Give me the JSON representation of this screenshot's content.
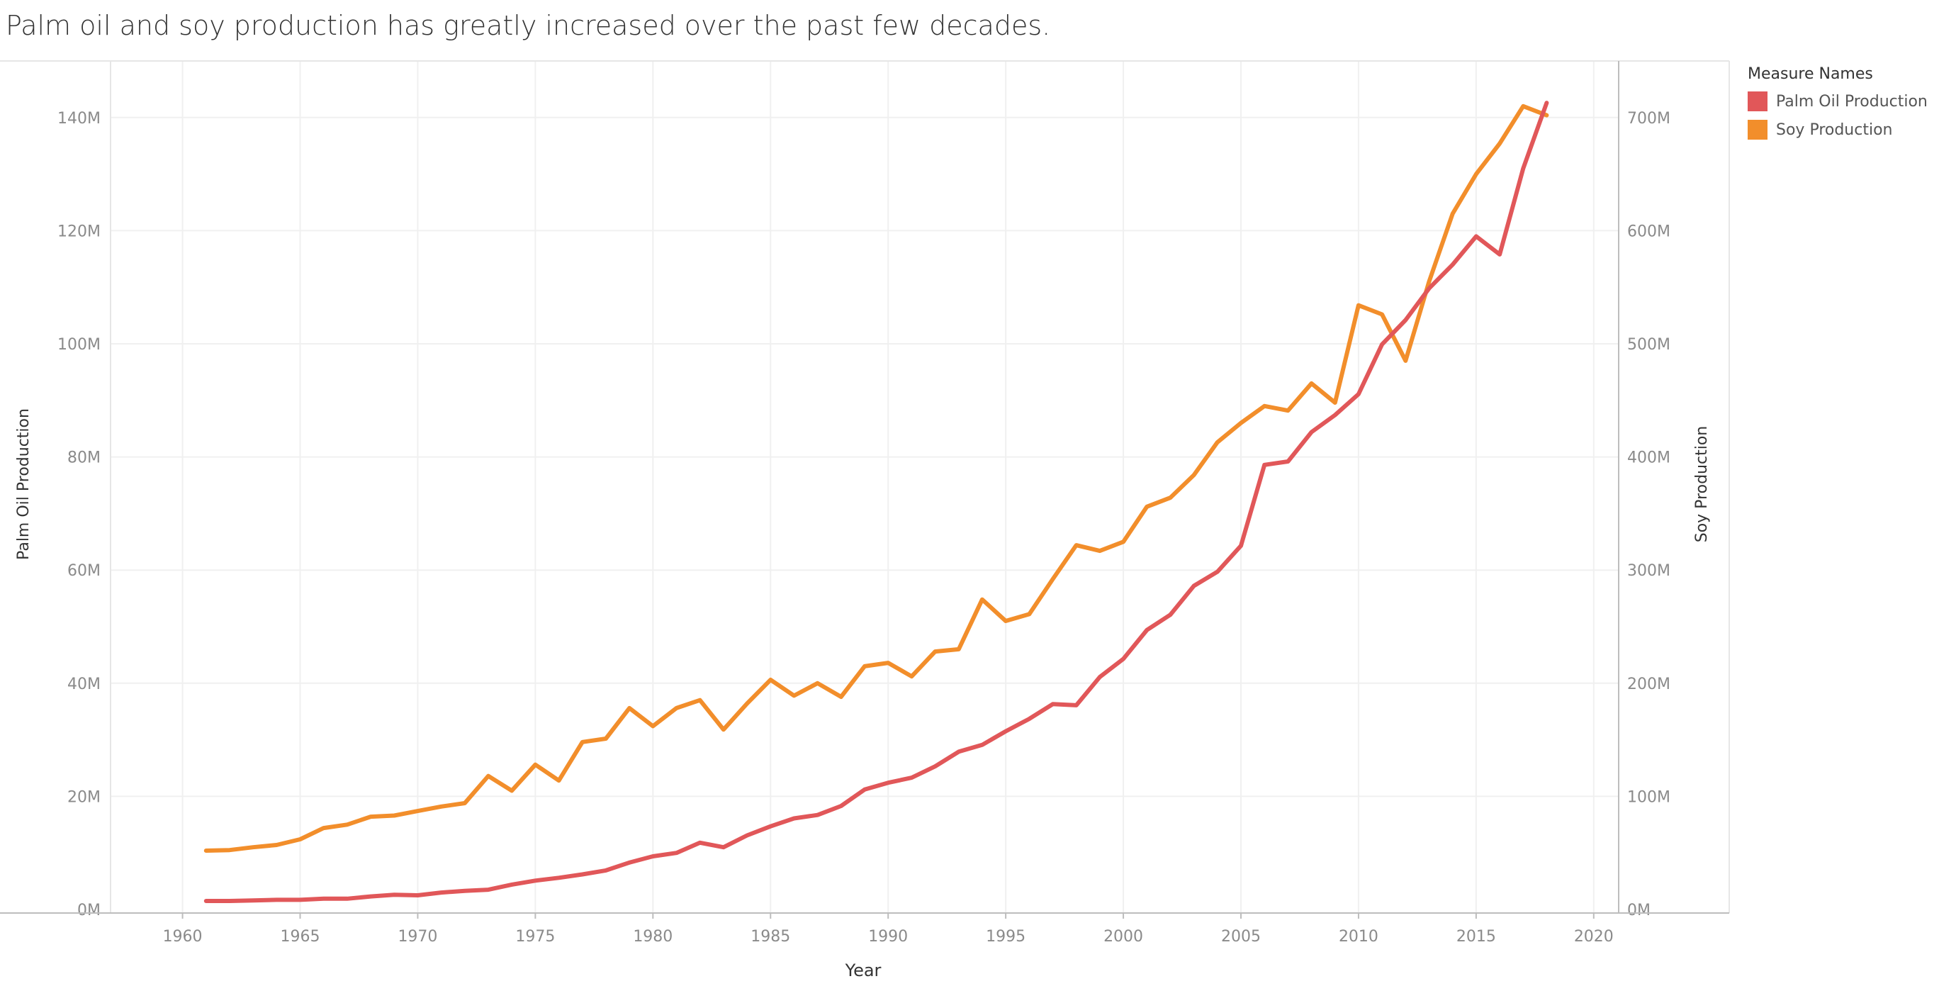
{
  "title": "Palm oil and soy production has greatly increased over the past few decades.",
  "legend": {
    "title": "Measure Names",
    "items": [
      {
        "label": "Palm Oil Production",
        "color": "#e15759"
      },
      {
        "label": "Soy Production",
        "color": "#f28e2b"
      }
    ]
  },
  "chart_data": {
    "type": "line",
    "xlabel": "Year",
    "ylabel_left": "Palm Oil Production",
    "ylabel_right": "Soy Production",
    "xlim": [
      1957,
      2021
    ],
    "ylim_left": [
      0,
      150000000
    ],
    "ylim_right": [
      0,
      750000000
    ],
    "xticks": [
      1960,
      1965,
      1970,
      1975,
      1980,
      1985,
      1990,
      1995,
      2000,
      2005,
      2010,
      2015,
      2020
    ],
    "xtick_labels": [
      "1960",
      "1965",
      "1970",
      "1975",
      "1980",
      "1985",
      "1990",
      "1995",
      "2000",
      "2005",
      "2010",
      "2015",
      "2020"
    ],
    "yticks_left": [
      0,
      20000000,
      40000000,
      60000000,
      80000000,
      100000000,
      120000000,
      140000000
    ],
    "ytick_labels_left": [
      "0M",
      "20M",
      "40M",
      "60M",
      "80M",
      "100M",
      "120M",
      "140M"
    ],
    "yticks_right": [
      0,
      100000000,
      200000000,
      300000000,
      400000000,
      500000000,
      600000000,
      700000000
    ],
    "ytick_labels_right": [
      "0M",
      "100M",
      "200M",
      "300M",
      "400M",
      "500M",
      "600M",
      "700M"
    ],
    "grid": true,
    "x": [
      1961,
      1962,
      1963,
      1964,
      1965,
      1966,
      1967,
      1968,
      1969,
      1970,
      1971,
      1972,
      1973,
      1974,
      1975,
      1976,
      1977,
      1978,
      1979,
      1980,
      1981,
      1982,
      1983,
      1984,
      1985,
      1986,
      1987,
      1988,
      1989,
      1990,
      1991,
      1992,
      1993,
      1994,
      1995,
      1996,
      1997,
      1998,
      1999,
      2000,
      2001,
      2002,
      2003,
      2004,
      2005,
      2006,
      2007,
      2008,
      2009,
      2010,
      2011,
      2012,
      2013,
      2014,
      2015,
      2016,
      2017,
      2018
    ],
    "series": [
      {
        "name": "Palm Oil Production",
        "axis": "left",
        "color": "#e15759",
        "values": [
          1500000,
          1500000,
          1600000,
          1700000,
          1700000,
          1900000,
          1900000,
          2300000,
          2600000,
          2500000,
          3000000,
          3300000,
          3500000,
          4400000,
          5100000,
          5600000,
          6200000,
          6900000,
          8300000,
          9400000,
          10000000,
          11800000,
          11000000,
          13100000,
          14700000,
          16100000,
          16700000,
          18300000,
          21200000,
          22400000,
          23300000,
          25300000,
          27900000,
          29100000,
          31500000,
          33700000,
          36300000,
          36100000,
          41100000,
          44300000,
          49400000,
          52100000,
          57200000,
          59700000,
          64300000,
          78600000,
          79200000,
          84400000,
          87400000,
          91100000,
          99900000,
          104200000,
          109800000,
          114000000,
          119000000,
          115800000,
          131000000,
          142600000
        ]
      },
      {
        "name": "Soy Production",
        "axis": "right",
        "color": "#f28e2b",
        "values": [
          52000000,
          52500000,
          55000000,
          57000000,
          62000000,
          72000000,
          75000000,
          82000000,
          83000000,
          87000000,
          91000000,
          94000000,
          118000000,
          105000000,
          128000000,
          114000000,
          148000000,
          151000000,
          178000000,
          162000000,
          178000000,
          185000000,
          159000000,
          182000000,
          203000000,
          189000000,
          200000000,
          188000000,
          215000000,
          218000000,
          206000000,
          228000000,
          230000000,
          274000000,
          255000000,
          261000000,
          292000000,
          322000000,
          317000000,
          325000000,
          356000000,
          364000000,
          384000000,
          413000000,
          430000000,
          445000000,
          441000000,
          465000000,
          448000000,
          534000000,
          526000000,
          485000000,
          555000000,
          615000000,
          650000000,
          677000000,
          710000000,
          702000000
        ]
      }
    ]
  }
}
